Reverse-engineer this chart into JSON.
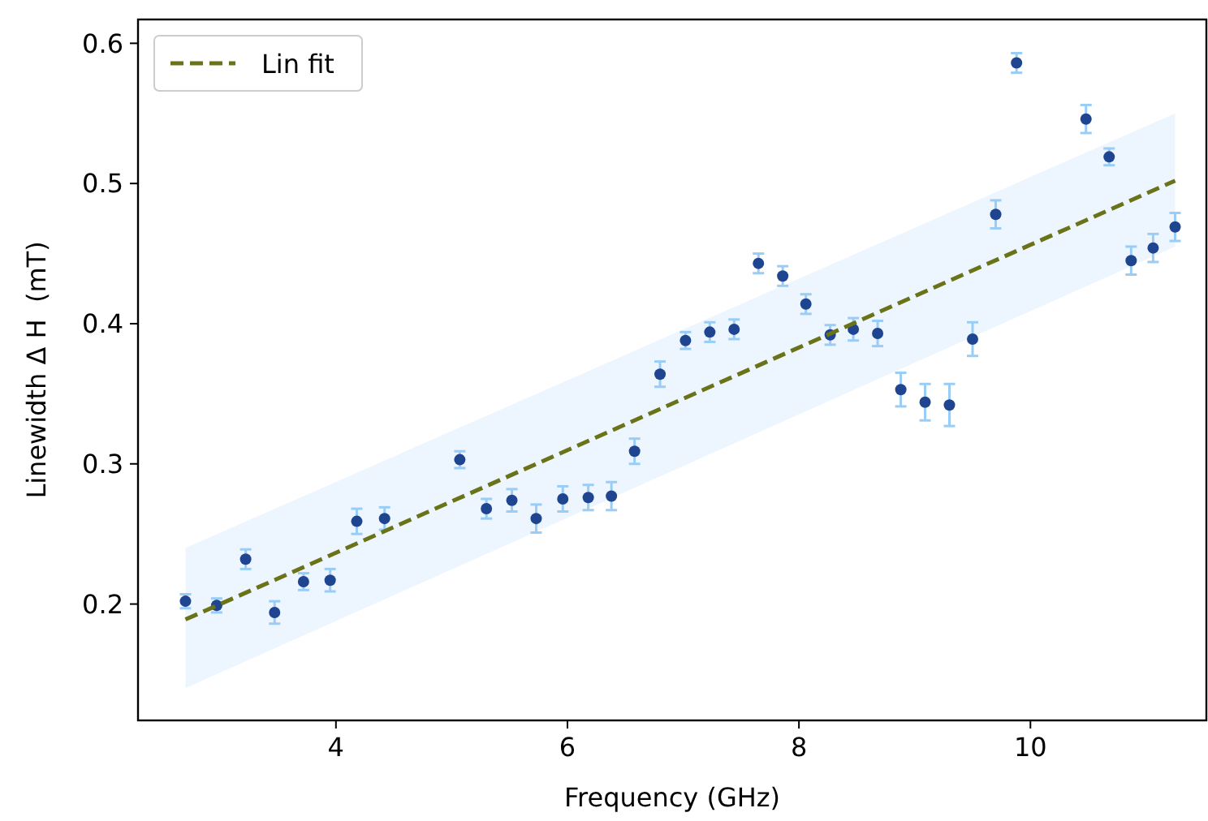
{
  "chart_data": {
    "type": "scatter",
    "xlabel": "Frequency (GHz)",
    "ylabel": "Linewidth Δ H  (mT)",
    "xlim": [
      2.29,
      11.52
    ],
    "ylim": [
      0.117,
      0.617
    ],
    "xticks": [
      4,
      6,
      8,
      10
    ],
    "yticks": [
      0.2,
      0.3,
      0.4,
      0.5,
      0.6
    ],
    "grid": false,
    "legend": "top left",
    "series": [
      {
        "color": "#1f4591",
        "marker": "circle",
        "x": [
          2.7,
          2.97,
          3.22,
          3.47,
          3.72,
          3.95,
          4.18,
          4.42,
          5.07,
          5.3,
          5.52,
          5.73,
          5.96,
          6.18,
          6.38,
          6.58,
          6.8,
          7.02,
          7.23,
          7.44,
          7.65,
          7.86,
          8.06,
          8.27,
          8.47,
          8.68,
          8.88,
          9.09,
          9.3,
          9.5,
          9.7,
          9.88,
          10.48,
          10.68,
          10.87,
          11.06,
          11.25
        ],
        "values": [
          0.202,
          0.199,
          0.232,
          0.194,
          0.216,
          0.217,
          0.259,
          0.261,
          0.303,
          0.268,
          0.274,
          0.261,
          0.275,
          0.276,
          0.277,
          0.309,
          0.364,
          0.388,
          0.394,
          0.396,
          0.443,
          0.434,
          0.414,
          0.392,
          0.396,
          0.393,
          0.353,
          0.344,
          0.342,
          0.389,
          0.478,
          0.586,
          0.546,
          0.519,
          0.445,
          0.454,
          0.469
        ],
        "errors": [
          0.005,
          0.005,
          0.007,
          0.008,
          0.006,
          0.008,
          0.009,
          0.008,
          0.006,
          0.007,
          0.008,
          0.01,
          0.009,
          0.009,
          0.01,
          0.009,
          0.009,
          0.006,
          0.007,
          0.007,
          0.007,
          0.007,
          0.007,
          0.007,
          0.008,
          0.009,
          0.012,
          0.013,
          0.015,
          0.012,
          0.01,
          0.007,
          0.01,
          0.006,
          0.01,
          0.01,
          0.01
        ]
      },
      {
        "type": "line",
        "name": "Lin fit",
        "color": "#6b7318",
        "line_style": "dashed",
        "marker": "none",
        "x": [
          2.7,
          11.25
        ],
        "values": [
          0.189,
          0.502
        ],
        "lower": [
          0.14,
          0.455
        ],
        "upper": [
          0.24,
          0.55
        ]
      }
    ]
  }
}
